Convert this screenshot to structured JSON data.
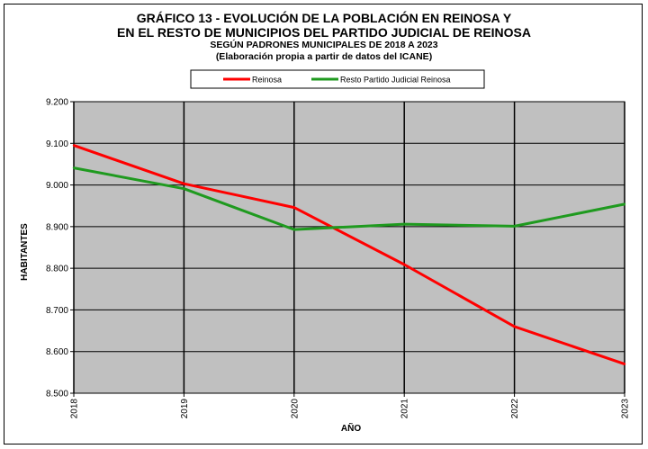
{
  "titles": {
    "line1": "GRÁFICO 13 - EVOLUCIÓN DE LA POBLACIÓN EN REINOSA Y",
    "line2": "EN EL RESTO DE MUNICIPIOS DEL PARTIDO JUDICIAL DE REINOSA",
    "line3": "SEGÚN PADRONES MUNICIPALES DE 2018 A 2023",
    "line4": "(Elaboración propia a partir de datos del ICANE)"
  },
  "chart_data": {
    "type": "line",
    "xlabel": "AÑO",
    "ylabel": "HABITANTES",
    "x": [
      "2018",
      "2019",
      "2020",
      "2021",
      "2022",
      "2023"
    ],
    "ylim": [
      8500,
      9200
    ],
    "yticks": [
      8500,
      8600,
      8700,
      8800,
      8900,
      9000,
      9100,
      9200
    ],
    "ytick_labels": [
      "8.500",
      "8.600",
      "8.700",
      "8.800",
      "8.900",
      "9.000",
      "9.100",
      "9.200"
    ],
    "grid": true,
    "legend_position": "top",
    "plot_background": "#c0c0c0",
    "series": [
      {
        "name": "Reinosa",
        "color": "#ff0000",
        "values": [
          9095,
          9003,
          8946,
          8809,
          8660,
          8570
        ]
      },
      {
        "name": "Resto Partido Judicial Reinosa",
        "color": "#1f9a1f",
        "values": [
          9041,
          8991,
          8893,
          8906,
          8901,
          8954
        ]
      }
    ]
  }
}
